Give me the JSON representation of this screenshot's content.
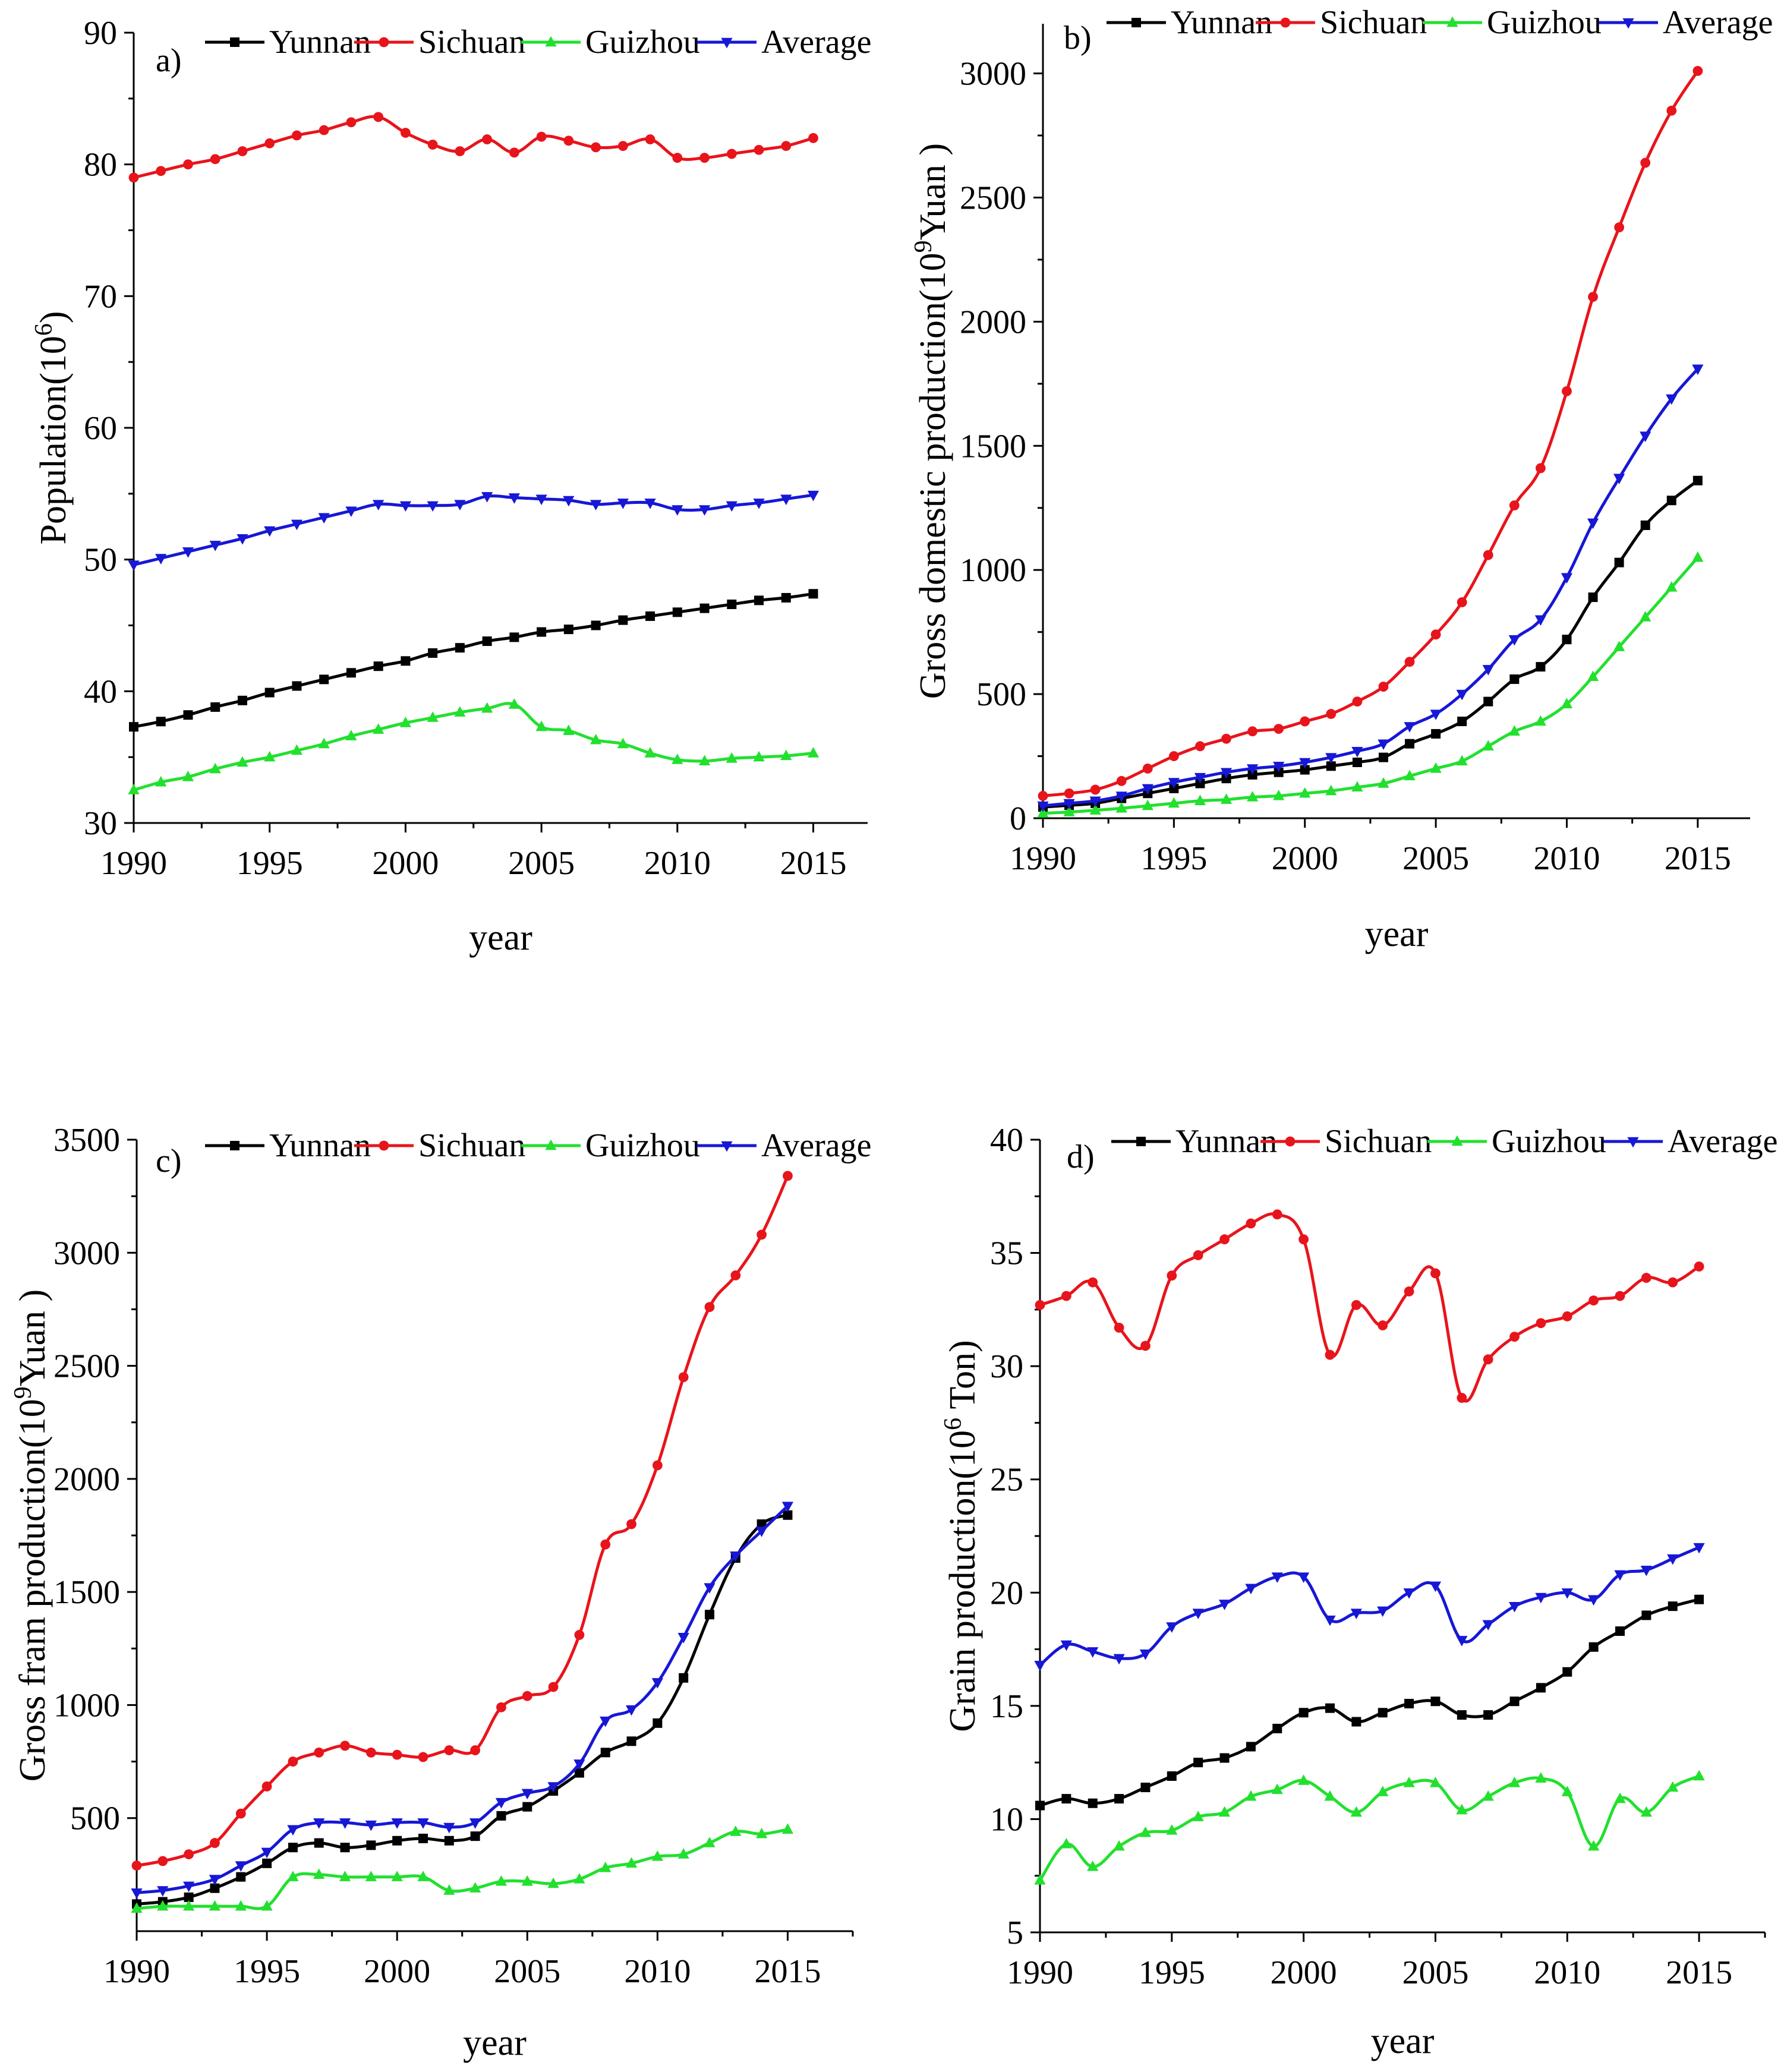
{
  "chart_data": [
    {
      "type": "line",
      "panel_label": "a)",
      "title": "",
      "xlabel": "year",
      "ylabel_main": "Population(10",
      "ylabel_sup": "6",
      "ylabel_tail": ")",
      "xlim": [
        1990,
        2017
      ],
      "ylim": [
        30,
        90
      ],
      "xticks": [
        1990,
        1995,
        2000,
        2005,
        2010,
        2015
      ],
      "yticks": [
        30,
        40,
        50,
        60,
        70,
        80,
        90
      ],
      "x": [
        1990,
        1991,
        1992,
        1993,
        1994,
        1995,
        1996,
        1997,
        1998,
        1999,
        2000,
        2001,
        2002,
        2003,
        2004,
        2005,
        2006,
        2007,
        2008,
        2009,
        2010,
        2011,
        2012,
        2013,
        2014,
        2015
      ],
      "series": [
        {
          "name": "Yunnan",
          "color": "#000000",
          "marker": "square",
          "values": [
            37.3,
            37.7,
            38.2,
            38.8,
            39.3,
            39.9,
            40.4,
            40.9,
            41.4,
            41.9,
            42.3,
            42.9,
            43.3,
            43.8,
            44.1,
            44.5,
            44.7,
            45.0,
            45.4,
            45.7,
            46.0,
            46.3,
            46.6,
            46.9,
            47.1,
            47.4
          ]
        },
        {
          "name": "Sichuan",
          "color": "#e8141b",
          "marker": "circle",
          "values": [
            79.0,
            79.5,
            80.0,
            80.4,
            81.0,
            81.6,
            82.2,
            82.6,
            83.2,
            83.6,
            82.4,
            81.5,
            81.0,
            81.9,
            80.9,
            82.1,
            81.8,
            81.3,
            81.4,
            81.9,
            80.5,
            80.5,
            80.8,
            81.1,
            81.4,
            82.0
          ]
        },
        {
          "name": "Guizhou",
          "color": "#22e02e",
          "marker": "triangle-up",
          "values": [
            32.5,
            33.1,
            33.5,
            34.1,
            34.6,
            35.0,
            35.5,
            36.0,
            36.6,
            37.1,
            37.6,
            38.0,
            38.4,
            38.7,
            39.0,
            37.3,
            37.0,
            36.3,
            36.0,
            35.3,
            34.8,
            34.7,
            34.9,
            35.0,
            35.1,
            35.3
          ]
        },
        {
          "name": "Average",
          "color": "#1717d6",
          "marker": "triangle-down",
          "values": [
            49.6,
            50.1,
            50.6,
            51.1,
            51.6,
            52.2,
            52.7,
            53.2,
            53.7,
            54.2,
            54.1,
            54.1,
            54.2,
            54.8,
            54.7,
            54.6,
            54.5,
            54.2,
            54.3,
            54.3,
            53.8,
            53.8,
            54.1,
            54.3,
            54.6,
            54.9
          ]
        }
      ]
    },
    {
      "type": "line",
      "panel_label": "b)",
      "title": "",
      "xlabel": "year",
      "ylabel_main": "Gross domestic production(10",
      "ylabel_sup": "9",
      "ylabel_tail": "Yuan )",
      "xlim": [
        1990,
        2017
      ],
      "ylim": [
        0,
        3200
      ],
      "xticks": [
        1990,
        1995,
        2000,
        2005,
        2010,
        2015
      ],
      "yticks": [
        0,
        500,
        1000,
        1500,
        2000,
        2500,
        3000
      ],
      "x": [
        1990,
        1991,
        1992,
        1993,
        1994,
        1995,
        1996,
        1997,
        1998,
        1999,
        2000,
        2001,
        2002,
        2003,
        2004,
        2005,
        2006,
        2007,
        2008,
        2009,
        2010,
        2011,
        2012,
        2013,
        2014,
        2015
      ],
      "series": [
        {
          "name": "Yunnan",
          "color": "#000000",
          "marker": "square",
          "values": [
            45,
            52,
            60,
            80,
            100,
            120,
            140,
            160,
            175,
            185,
            195,
            210,
            225,
            245,
            300,
            340,
            390,
            470,
            560,
            610,
            720,
            890,
            1030,
            1180,
            1280,
            1360
          ]
        },
        {
          "name": "Sichuan",
          "color": "#e8141b",
          "marker": "circle",
          "values": [
            90,
            100,
            115,
            150,
            200,
            250,
            290,
            320,
            350,
            360,
            390,
            420,
            470,
            530,
            630,
            740,
            870,
            1060,
            1260,
            1410,
            1720,
            2100,
            2380,
            2640,
            2850,
            3010
          ]
        },
        {
          "name": "Guizhou",
          "color": "#22e02e",
          "marker": "triangle-up",
          "values": [
            20,
            25,
            32,
            40,
            50,
            60,
            70,
            75,
            85,
            90,
            100,
            110,
            125,
            140,
            170,
            200,
            230,
            290,
            350,
            390,
            460,
            570,
            690,
            810,
            930,
            1050
          ]
        },
        {
          "name": "Average",
          "color": "#1717d6",
          "marker": "triangle-down",
          "values": [
            50,
            60,
            70,
            90,
            120,
            145,
            165,
            185,
            200,
            210,
            225,
            245,
            270,
            300,
            370,
            420,
            500,
            600,
            720,
            800,
            970,
            1190,
            1370,
            1540,
            1690,
            1810
          ]
        }
      ]
    },
    {
      "type": "line",
      "panel_label": "c)",
      "title": "",
      "xlabel": "year",
      "ylabel_main": "Gross fram production(10",
      "ylabel_sup": "9",
      "ylabel_tail": "Yuan )",
      "xlim": [
        1990,
        2017.5
      ],
      "ylim": [
        0,
        3500
      ],
      "xticks": [
        1990,
        1995,
        2000,
        2005,
        2010,
        2015
      ],
      "yticks": [
        500,
        1000,
        1500,
        2000,
        2500,
        3000,
        3500
      ],
      "x": [
        1990,
        1991,
        1992,
        1993,
        1994,
        1995,
        1996,
        1997,
        1998,
        1999,
        2000,
        2001,
        2002,
        2003,
        2004,
        2005,
        2006,
        2007,
        2008,
        2009,
        2010,
        2011,
        2012,
        2013,
        2014,
        2015
      ],
      "series": [
        {
          "name": "Yunnan",
          "color": "#000000",
          "marker": "square",
          "values": [
            120,
            130,
            150,
            190,
            240,
            300,
            370,
            390,
            370,
            380,
            400,
            410,
            400,
            420,
            510,
            550,
            620,
            700,
            790,
            840,
            920,
            1120,
            1400,
            1650,
            1800,
            1840
          ]
        },
        {
          "name": "Sichuan",
          "color": "#e8141b",
          "marker": "circle",
          "values": [
            290,
            310,
            340,
            390,
            520,
            640,
            750,
            790,
            820,
            790,
            780,
            770,
            800,
            800,
            990,
            1040,
            1080,
            1310,
            1710,
            1800,
            2060,
            2450,
            2760,
            2900,
            3080,
            3340
          ]
        },
        {
          "name": "Guizhou",
          "color": "#22e02e",
          "marker": "triangle-up",
          "values": [
            100,
            110,
            110,
            110,
            110,
            110,
            240,
            250,
            240,
            240,
            240,
            240,
            180,
            190,
            220,
            220,
            210,
            230,
            280,
            300,
            330,
            340,
            390,
            440,
            430,
            450
          ]
        },
        {
          "name": "Average",
          "color": "#1717d6",
          "marker": "triangle-down",
          "values": [
            170,
            180,
            200,
            230,
            290,
            350,
            450,
            480,
            480,
            470,
            480,
            480,
            460,
            480,
            570,
            610,
            640,
            740,
            930,
            980,
            1100,
            1300,
            1520,
            1660,
            1770,
            1880
          ]
        }
      ]
    },
    {
      "type": "line",
      "panel_label": "d)",
      "title": "",
      "xlabel": "year",
      "ylabel_main": "Grain production(10",
      "ylabel_sup": "6",
      "ylabel_tail": " Ton)",
      "xlim": [
        1990,
        2017.5
      ],
      "ylim": [
        5,
        40
      ],
      "xticks": [
        1990,
        1995,
        2000,
        2005,
        2010,
        2015
      ],
      "yticks": [
        5,
        10,
        15,
        20,
        25,
        30,
        35,
        40
      ],
      "x": [
        1990,
        1991,
        1992,
        1993,
        1994,
        1995,
        1996,
        1997,
        1998,
        1999,
        2000,
        2001,
        2002,
        2003,
        2004,
        2005,
        2006,
        2007,
        2008,
        2009,
        2010,
        2011,
        2012,
        2013,
        2014,
        2015
      ],
      "series": [
        {
          "name": "Yunnan",
          "color": "#000000",
          "marker": "square",
          "values": [
            10.6,
            10.9,
            10.7,
            10.9,
            11.4,
            11.9,
            12.5,
            12.7,
            13.2,
            14.0,
            14.7,
            14.9,
            14.3,
            14.7,
            15.1,
            15.2,
            14.6,
            14.6,
            15.2,
            15.8,
            16.5,
            17.6,
            18.3,
            19.0,
            19.4,
            19.7
          ]
        },
        {
          "name": "Sichuan",
          "color": "#e8141b",
          "marker": "circle",
          "values": [
            32.7,
            33.1,
            33.7,
            31.7,
            30.9,
            34.0,
            34.9,
            35.6,
            36.3,
            36.7,
            35.6,
            30.5,
            32.7,
            31.8,
            33.3,
            34.1,
            28.6,
            30.3,
            31.3,
            31.9,
            32.2,
            32.9,
            33.1,
            33.9,
            33.7,
            34.4
          ]
        },
        {
          "name": "Guizhou",
          "color": "#22e02e",
          "marker": "triangle-up",
          "values": [
            7.3,
            8.9,
            7.9,
            8.8,
            9.4,
            9.5,
            10.1,
            10.3,
            11.0,
            11.3,
            11.7,
            11.0,
            10.3,
            11.2,
            11.6,
            11.6,
            10.4,
            11.0,
            11.6,
            11.8,
            11.2,
            8.8,
            10.9,
            10.3,
            11.4,
            11.9
          ]
        },
        {
          "name": "Average",
          "color": "#1717d6",
          "marker": "triangle-down",
          "values": [
            16.8,
            17.7,
            17.4,
            17.1,
            17.3,
            18.5,
            19.1,
            19.5,
            20.2,
            20.7,
            20.7,
            18.8,
            19.1,
            19.2,
            20.0,
            20.3,
            17.9,
            18.6,
            19.4,
            19.8,
            20.0,
            19.7,
            20.8,
            21.0,
            21.5,
            22.0
          ]
        }
      ]
    }
  ]
}
